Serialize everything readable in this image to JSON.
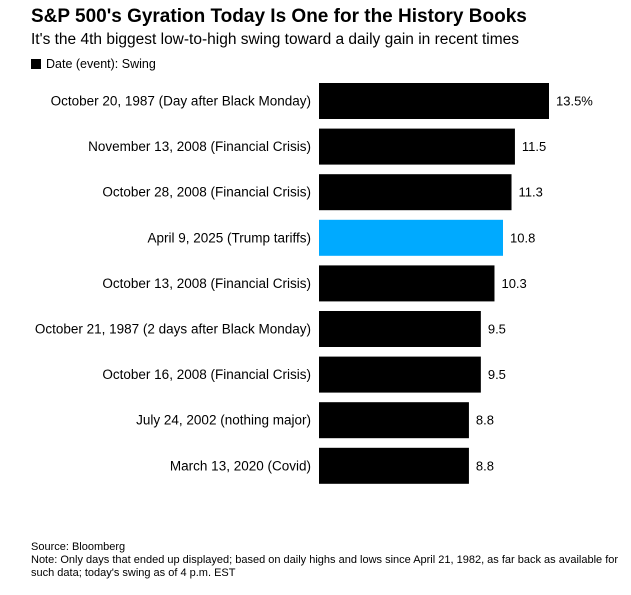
{
  "header": {
    "title": "S&P 500's Gyration Today Is One for the History Books",
    "subtitle": "It's the 4th biggest low-to-high swing toward a daily gain in recent times",
    "legend_label": "Date (event): Swing"
  },
  "colors": {
    "default_bar": "#000000",
    "highlight_bar": "#00aaff"
  },
  "chart_data": {
    "type": "bar",
    "orientation": "horizontal",
    "title": "S&P 500's Gyration Today Is One for the History Books",
    "subtitle": "It's the 4th biggest low-to-high swing toward a daily gain in recent times",
    "xlabel": "",
    "ylabel": "",
    "xlim": [
      0,
      13.5
    ],
    "grid": false,
    "legend": "top-left",
    "categories": [
      "October 20, 1987 (Day after Black Monday)",
      "November 13, 2008 (Financial Crisis)",
      "October 28, 2008 (Financial Crisis)",
      "April 9, 2025 (Trump tariffs)",
      "October 13, 2008 (Financial Crisis)",
      "October 21, 1987 (2 days after Black Monday)",
      "October 16, 2008 (Financial Crisis)",
      "July 24, 2002 (nothing major)",
      "March 13, 2020 (Covid)"
    ],
    "series": [
      {
        "name": "Date (event): Swing",
        "values": [
          13.5,
          11.5,
          11.3,
          10.8,
          10.3,
          9.5,
          9.5,
          8.8,
          8.8
        ]
      }
    ],
    "value_labels": [
      "13.5%",
      "11.5",
      "11.3",
      "10.8",
      "10.3",
      "9.5",
      "9.5",
      "8.8",
      "8.8"
    ],
    "highlight_index": 3
  },
  "footer": {
    "source": "Source: Bloomberg",
    "note": "Note: Only days that ended up displayed; based on daily highs and lows since April 21, 1982, as far back as available for such data; today's swing as of 4 p.m. EST"
  }
}
